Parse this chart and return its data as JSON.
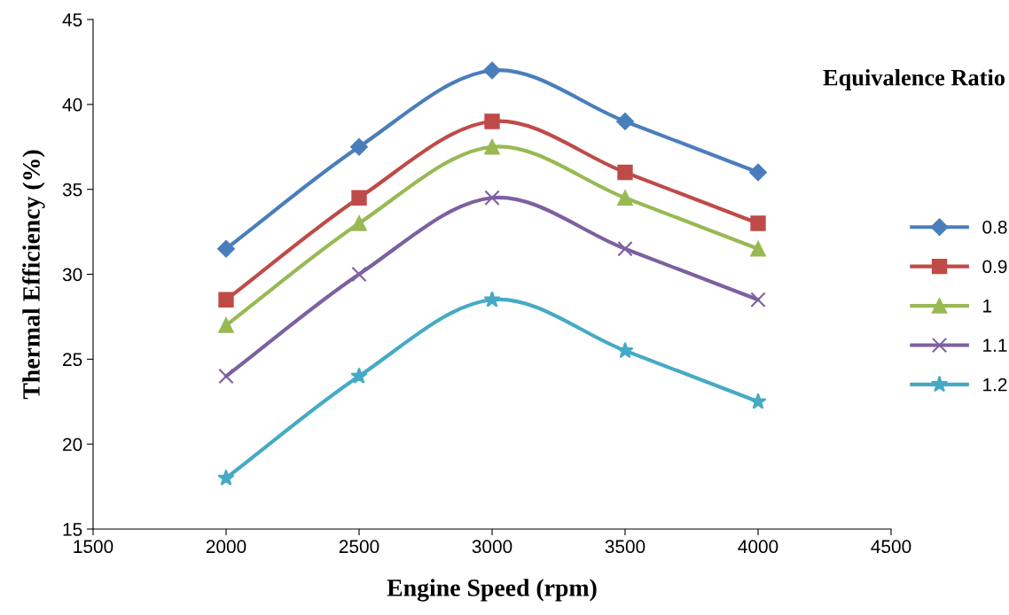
{
  "chart_data": {
    "type": "line",
    "xlabel": "Engine Speed (rpm)",
    "ylabel": "Thermal Efficiency (%)",
    "legend_title": "Equivalence Ratio",
    "x": [
      2000,
      2500,
      3000,
      3500,
      4000
    ],
    "series": [
      {
        "name": "0.8",
        "color": "#4a7ebb",
        "marker": "diamond",
        "values": [
          31.5,
          37.5,
          42,
          39,
          36
        ]
      },
      {
        "name": "0.9",
        "color": "#be4b48",
        "marker": "square",
        "values": [
          28.5,
          34.5,
          39,
          36,
          33
        ]
      },
      {
        "name": "1",
        "color": "#98b954",
        "marker": "triangle",
        "values": [
          27,
          33,
          37.5,
          34.5,
          31.5
        ]
      },
      {
        "name": "1.1",
        "color": "#7d60a0",
        "marker": "cross",
        "values": [
          24,
          30,
          34.5,
          31.5,
          28.5
        ]
      },
      {
        "name": "1.2",
        "color": "#46aac5",
        "marker": "star",
        "values": [
          18,
          24,
          28.5,
          25.5,
          22.5
        ]
      }
    ],
    "xlim": [
      1500,
      4500
    ],
    "xticks": [
      1500,
      2000,
      2500,
      3000,
      3500,
      4000,
      4500
    ],
    "ylim": [
      15,
      45
    ],
    "yticks": [
      15,
      20,
      25,
      30,
      35,
      40,
      45
    ],
    "grid": false,
    "legend": "right"
  }
}
